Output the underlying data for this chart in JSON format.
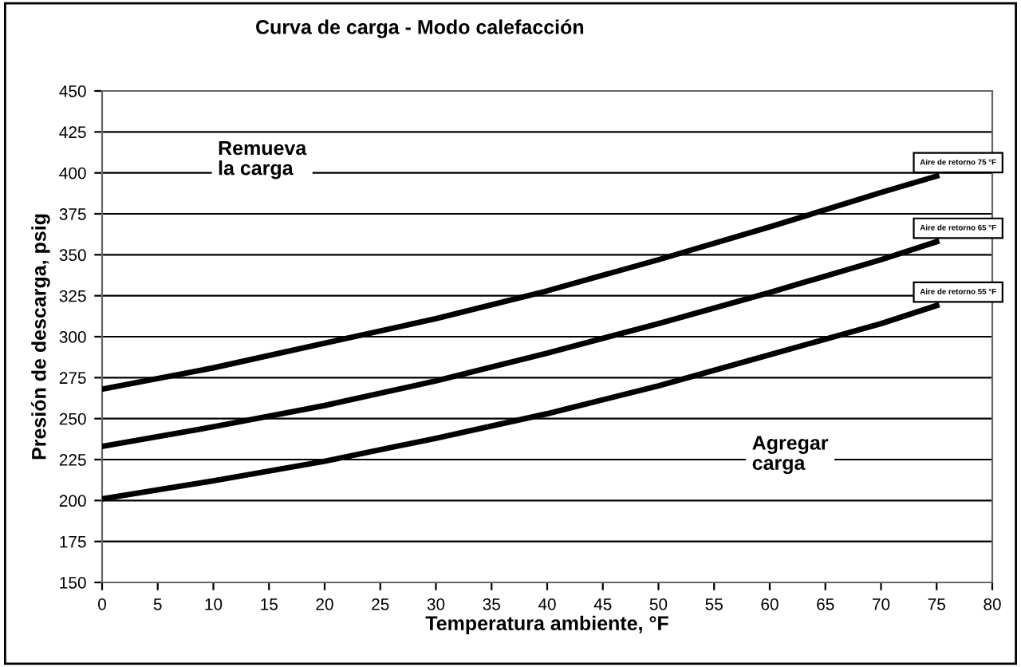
{
  "chart_data": {
    "type": "line",
    "title": "Curva de carga - Modo calefacción",
    "xlabel": "Temperatura ambiente, °F",
    "ylabel": "Presión de descarga, psig",
    "x": [
      0,
      10,
      20,
      30,
      40,
      50,
      60,
      70,
      75
    ],
    "series": [
      {
        "name": "Aire de retorno 75 °F",
        "color": "#000000",
        "values": [
          268,
          281,
          296,
          311,
          328,
          347,
          367,
          388,
          398
        ]
      },
      {
        "name": "Aire de retorno 65 °F",
        "color": "#000000",
        "values": [
          233,
          245,
          258,
          273,
          290,
          308,
          327,
          347,
          358
        ]
      },
      {
        "name": "Aire de retorno 55 °F",
        "color": "#000000",
        "values": [
          201,
          212,
          224,
          238,
          253,
          270,
          289,
          308,
          319
        ]
      }
    ],
    "annotations": [
      "Remueva\nla carga",
      "Agregar\ncarga"
    ],
    "xlim": [
      0,
      80
    ],
    "xticks": [
      0,
      5,
      10,
      15,
      20,
      25,
      30,
      35,
      40,
      45,
      50,
      55,
      60,
      65,
      70,
      75,
      80
    ],
    "ylim": [
      150,
      450
    ],
    "yticks": [
      150,
      175,
      200,
      225,
      250,
      275,
      300,
      325,
      350,
      375,
      400,
      425,
      450
    ],
    "grid": "y",
    "legend": false,
    "marker": "none",
    "line_style": "solid"
  }
}
